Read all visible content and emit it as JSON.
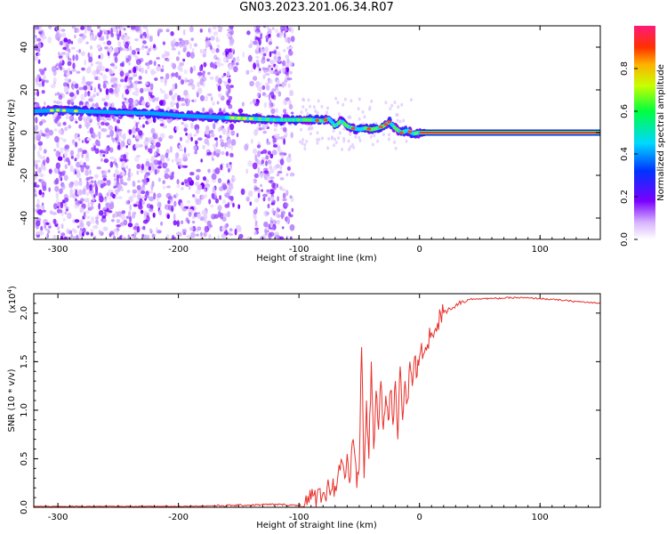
{
  "title": "GN03.2023.201.06.34.R07",
  "chart_data": [
    {
      "type": "heatmap",
      "title": "",
      "xlabel": "Height of straight line (km)",
      "ylabel": "Frequency (Hz)",
      "xlim": [
        -320,
        150
      ],
      "ylim": [
        -50,
        50
      ],
      "xticks": [
        -300,
        -200,
        -100,
        0,
        100
      ],
      "yticks": [
        -40,
        -20,
        0,
        20,
        40
      ],
      "colorbar": {
        "label": "Normalized spectral amplitude",
        "range": [
          0,
          1
        ],
        "ticks": [
          "0.0",
          "0.2",
          "0.4",
          "0.6",
          "0.8"
        ]
      },
      "ridge": {
        "x": [
          -320,
          -300,
          -280,
          -250,
          -220,
          -200,
          -180,
          -160,
          -140,
          -120,
          -100,
          -90,
          -80,
          -75,
          -70,
          -65,
          -60,
          -55,
          -50,
          -45,
          -40,
          -35,
          -30,
          -25,
          -20,
          -15,
          -10,
          -5,
          0,
          150
        ],
        "y": [
          10,
          10.5,
          10,
          9.5,
          9,
          8,
          7.5,
          7,
          6.5,
          6,
          6,
          6,
          5.5,
          6.5,
          3,
          5.5,
          3,
          2,
          1.5,
          2,
          1.5,
          2,
          3,
          5,
          2,
          0,
          1,
          -0.5,
          0,
          0
        ]
      },
      "noise_region": [
        -320,
        -105
      ]
    },
    {
      "type": "line",
      "title": "",
      "xlabel": "Height of straight line (km)",
      "ylabel": "SNR (10 * v/v)",
      "ylabel_scale": "(x10",
      "ylabel_scale_exp": "4",
      "ylabel_scale_close": ")",
      "xlim": [
        -320,
        150
      ],
      "ylim": [
        0,
        2.2
      ],
      "xticks": [
        -300,
        -200,
        -100,
        0,
        100
      ],
      "yticks": [
        "0.0",
        "0.5",
        "1.0",
        "1.5",
        "2.0"
      ],
      "series": [
        {
          "color": "#e8302b",
          "x": [
            -320,
            -300,
            -250,
            -200,
            -150,
            -120,
            -100,
            -95,
            -90,
            -85,
            -80,
            -75,
            -70,
            -65,
            -62,
            -60,
            -58,
            -55,
            -52,
            -50,
            -48,
            -46,
            -44,
            -42,
            -40,
            -38,
            -36,
            -34,
            -32,
            -30,
            -28,
            -26,
            -24,
            -22,
            -20,
            -18,
            -16,
            -14,
            -12,
            -10,
            -8,
            -6,
            -4,
            -2,
            0,
            5,
            10,
            15,
            20,
            25,
            30,
            35,
            40,
            50,
            60,
            80,
            100,
            120,
            150
          ],
          "y": [
            0.01,
            0.01,
            0.01,
            0.01,
            0.02,
            0.03,
            0.02,
            0.04,
            0.08,
            0.12,
            0.15,
            0.2,
            0.22,
            0.5,
            0.3,
            0.55,
            0.25,
            0.7,
            0.2,
            0.4,
            1.65,
            0.3,
            1.1,
            0.5,
            1.5,
            0.6,
            1.2,
            0.8,
            1.3,
            0.8,
            1.15,
            0.9,
            1.2,
            0.85,
            1.3,
            0.7,
            1.45,
            0.9,
            1.3,
            1.1,
            1.5,
            1.25,
            1.55,
            1.35,
            1.55,
            1.65,
            1.8,
            1.9,
            2.0,
            2.05,
            2.08,
            2.12,
            2.14,
            2.15,
            2.15,
            2.16,
            2.15,
            2.13,
            2.1
          ]
        }
      ]
    }
  ]
}
